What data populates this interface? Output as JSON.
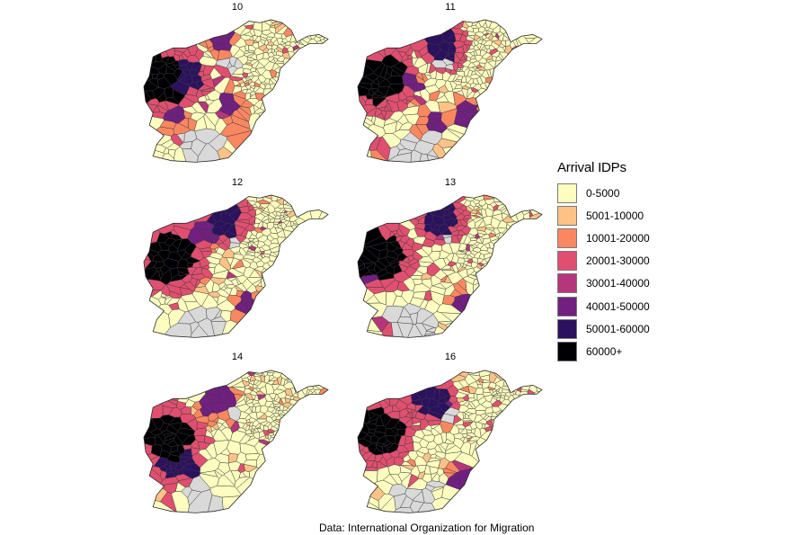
{
  "panels": [
    {
      "label": "10",
      "clusters": [
        [
          0.09,
          0.43,
          3
        ],
        [
          0.22,
          0.42,
          2
        ],
        [
          0.42,
          0.18,
          1
        ],
        [
          0.55,
          0.78,
          1
        ],
        [
          0.17,
          0.69,
          1
        ],
        [
          0.48,
          0.62,
          1
        ]
      ]
    },
    {
      "label": "11",
      "clusters": [
        [
          0.12,
          0.42,
          3
        ],
        [
          0.46,
          0.21,
          2
        ],
        [
          0.28,
          0.45,
          1
        ],
        [
          0.42,
          0.73,
          1
        ],
        [
          0.6,
          0.66,
          1
        ]
      ]
    },
    {
      "label": "12",
      "clusters": [
        [
          0.15,
          0.45,
          3
        ],
        [
          0.45,
          0.19,
          2
        ],
        [
          0.56,
          0.77,
          1
        ],
        [
          0.35,
          0.29,
          1
        ]
      ]
    },
    {
      "label": "13",
      "clusters": [
        [
          0.13,
          0.44,
          3
        ],
        [
          0.45,
          0.2,
          2
        ],
        [
          0.58,
          0.75,
          1
        ],
        [
          0.05,
          0.52,
          1
        ]
      ]
    },
    {
      "label": "14",
      "clusters": [
        [
          0.12,
          0.48,
          3
        ],
        [
          0.17,
          0.63,
          2
        ],
        [
          0.36,
          0.28,
          1
        ],
        [
          0.43,
          0.18,
          1
        ],
        [
          0.06,
          0.4,
          1
        ]
      ]
    },
    {
      "label": "16",
      "clusters": [
        [
          0.11,
          0.44,
          3
        ],
        [
          0.4,
          0.22,
          2
        ],
        [
          0.55,
          0.76,
          1
        ],
        [
          0.48,
          0.3,
          1
        ]
      ]
    }
  ],
  "legend": {
    "title": "Arrival IDPs",
    "items": [
      {
        "label": "0-5000",
        "color": "#fcfdbf"
      },
      {
        "label": "5001-10000",
        "color": "#fec287"
      },
      {
        "label": "10001-20000",
        "color": "#fb8761"
      },
      {
        "label": "20001-30000",
        "color": "#e04f6f"
      },
      {
        "label": "30001-40000",
        "color": "#b5367a"
      },
      {
        "label": "40001-50000",
        "color": "#711f81"
      },
      {
        "label": "50001-60000",
        "color": "#2c115f"
      },
      {
        "label": "60000+",
        "color": "#000004"
      }
    ]
  },
  "missing_color": "#d9d9d9",
  "caption": "Data: International Organization for Migration"
}
